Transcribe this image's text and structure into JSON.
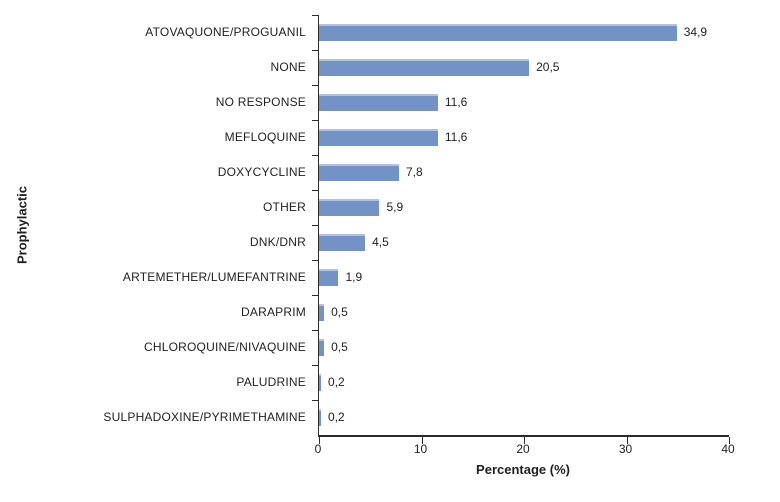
{
  "chart_data": {
    "type": "bar",
    "orientation": "horizontal",
    "title": "",
    "xlabel": "Percentage (%)",
    "ylabel": "Prophylactic",
    "xlim": [
      0,
      40
    ],
    "xticks": [
      0,
      10,
      20,
      30,
      40
    ],
    "grid": false,
    "legend": null,
    "categories": [
      "ATOVAQUONE/PROGUANIL",
      "NONE",
      "NO RESPONSE",
      "MEFLOQUINE",
      "DOXYCYCLINE",
      "OTHER",
      "DNK/DNR",
      "ARTEMETHER/LUMEFANTRINE",
      "DARAPRIM",
      "CHLOROQUINE/NIVAQUINE",
      "PALUDRINE",
      "SULPHADOXINE/PYRIMETHAMINE"
    ],
    "values": [
      34.9,
      20.5,
      11.6,
      11.6,
      7.8,
      5.9,
      4.5,
      1.9,
      0.5,
      0.5,
      0.2,
      0.2
    ],
    "value_labels": [
      "34,9",
      "20,5",
      "11,6",
      "11,6",
      "7,8",
      "5,9",
      "4,5",
      "1,9",
      "0,5",
      "0,5",
      "0,2",
      "0,2"
    ],
    "bar_color": "#7392C6",
    "bar_top_edge_color": "#B1C1DF",
    "axis_color": "#2B2B2B"
  }
}
